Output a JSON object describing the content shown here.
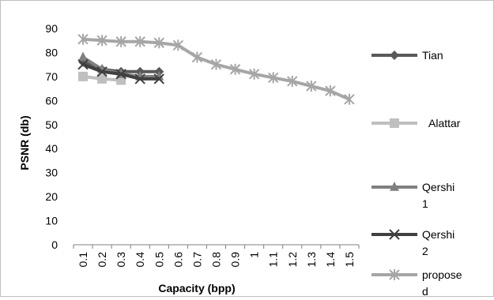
{
  "chart_data": {
    "type": "line",
    "title": "",
    "xlabel": "Capacity (bpp)",
    "ylabel": "PSNR (db)",
    "categories": [
      "0.1",
      "0.2",
      "0.3",
      "0.4",
      "0.5",
      "0.6",
      "0.7",
      "0.8",
      "0.9",
      "1",
      "1.1",
      "1.2",
      "1.3",
      "1.4",
      "1.5"
    ],
    "ylim": [
      0,
      90
    ],
    "yticks": [
      0,
      10,
      20,
      30,
      40,
      50,
      60,
      70,
      80,
      90
    ],
    "grid": false,
    "legend_position": "right",
    "series": [
      {
        "name": "Tian",
        "legend_lines": [
          "Tian"
        ],
        "color": "#595959",
        "marker": "diamond",
        "values": [
          76,
          73,
          72,
          72,
          72,
          null,
          null,
          null,
          null,
          null,
          null,
          null,
          null,
          null,
          null
        ]
      },
      {
        "name": "Alattar",
        "legend_lines": [
          "Alattar"
        ],
        "color": "#bfbfbf",
        "marker": "square",
        "values": [
          70,
          69,
          68.5,
          null,
          null,
          null,
          null,
          null,
          null,
          null,
          null,
          null,
          null,
          null,
          null
        ]
      },
      {
        "name": "Qershi 1",
        "legend_lines": [
          "Qershi",
          "1"
        ],
        "color": "#7f7f7f",
        "marker": "triangle",
        "values": [
          78,
          73,
          71,
          70,
          70,
          null,
          null,
          null,
          null,
          null,
          null,
          null,
          null,
          null,
          null
        ]
      },
      {
        "name": "Qershi 2",
        "legend_lines": [
          "Qershi",
          "2"
        ],
        "color": "#404040",
        "marker": "x",
        "values": [
          75,
          72,
          71,
          69,
          69,
          null,
          null,
          null,
          null,
          null,
          null,
          null,
          null,
          null,
          null
        ]
      },
      {
        "name": "proposed",
        "legend_lines": [
          "propose",
          "d"
        ],
        "color": "#a6a6a6",
        "marker": "star",
        "values": [
          85.5,
          85,
          84.5,
          84.5,
          84,
          83,
          78,
          75,
          73,
          71,
          69.5,
          68,
          66,
          64,
          60.5
        ]
      }
    ]
  }
}
